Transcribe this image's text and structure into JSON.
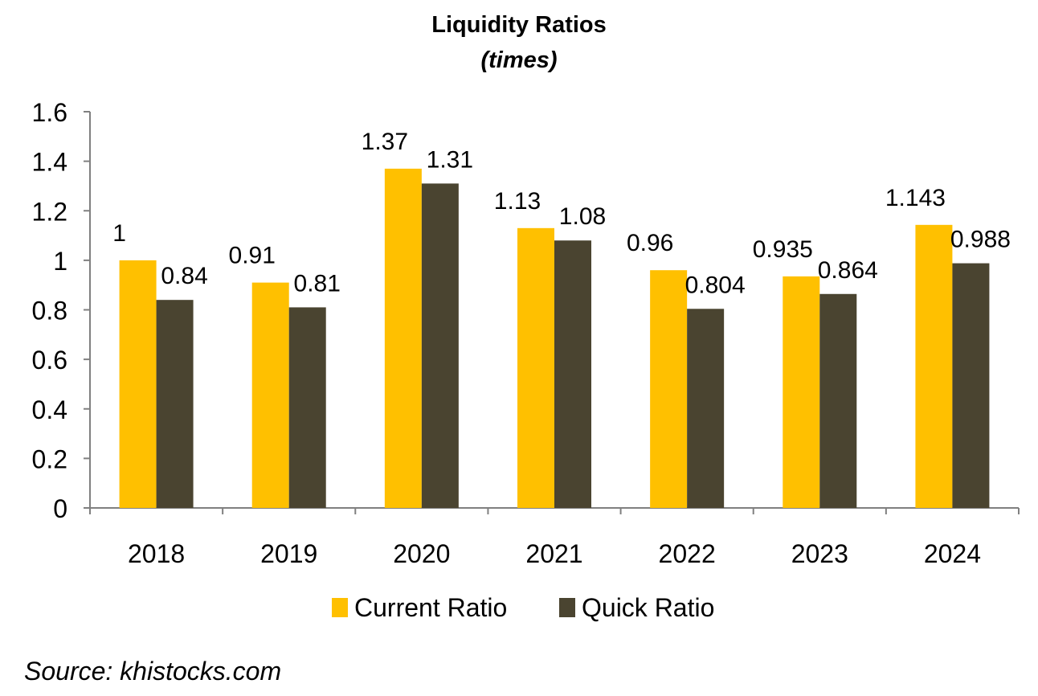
{
  "chart_data": {
    "type": "bar",
    "title": "Liquidity Ratios",
    "subtitle": "(times)",
    "categories": [
      "2018",
      "2019",
      "2020",
      "2021",
      "2022",
      "2023",
      "2024"
    ],
    "series": [
      {
        "name": "Current Ratio",
        "color": "#FFC000",
        "values": [
          1,
          0.91,
          1.37,
          1.13,
          0.96,
          0.935,
          1.143
        ],
        "labels": [
          "1",
          "0.91",
          "1.37",
          "1.13",
          "0.96",
          "0.935",
          "1.143"
        ]
      },
      {
        "name": "Quick Ratio",
        "color": "#4A4430",
        "values": [
          0.84,
          0.81,
          1.31,
          1.08,
          0.804,
          0.864,
          0.988
        ],
        "labels": [
          "0.84",
          "0.81",
          "1.31",
          "1.08",
          "0.804",
          "0.864",
          "0.988"
        ]
      }
    ],
    "ylim": [
      0,
      1.6
    ],
    "yticks": [
      "0",
      "0.2",
      "0.4",
      "0.6",
      "0.8",
      "1",
      "1.2",
      "1.4",
      "1.6"
    ],
    "grid": false,
    "legend": "bottom",
    "xlabel": "",
    "ylabel": ""
  },
  "source": "Source: khistocks.com"
}
